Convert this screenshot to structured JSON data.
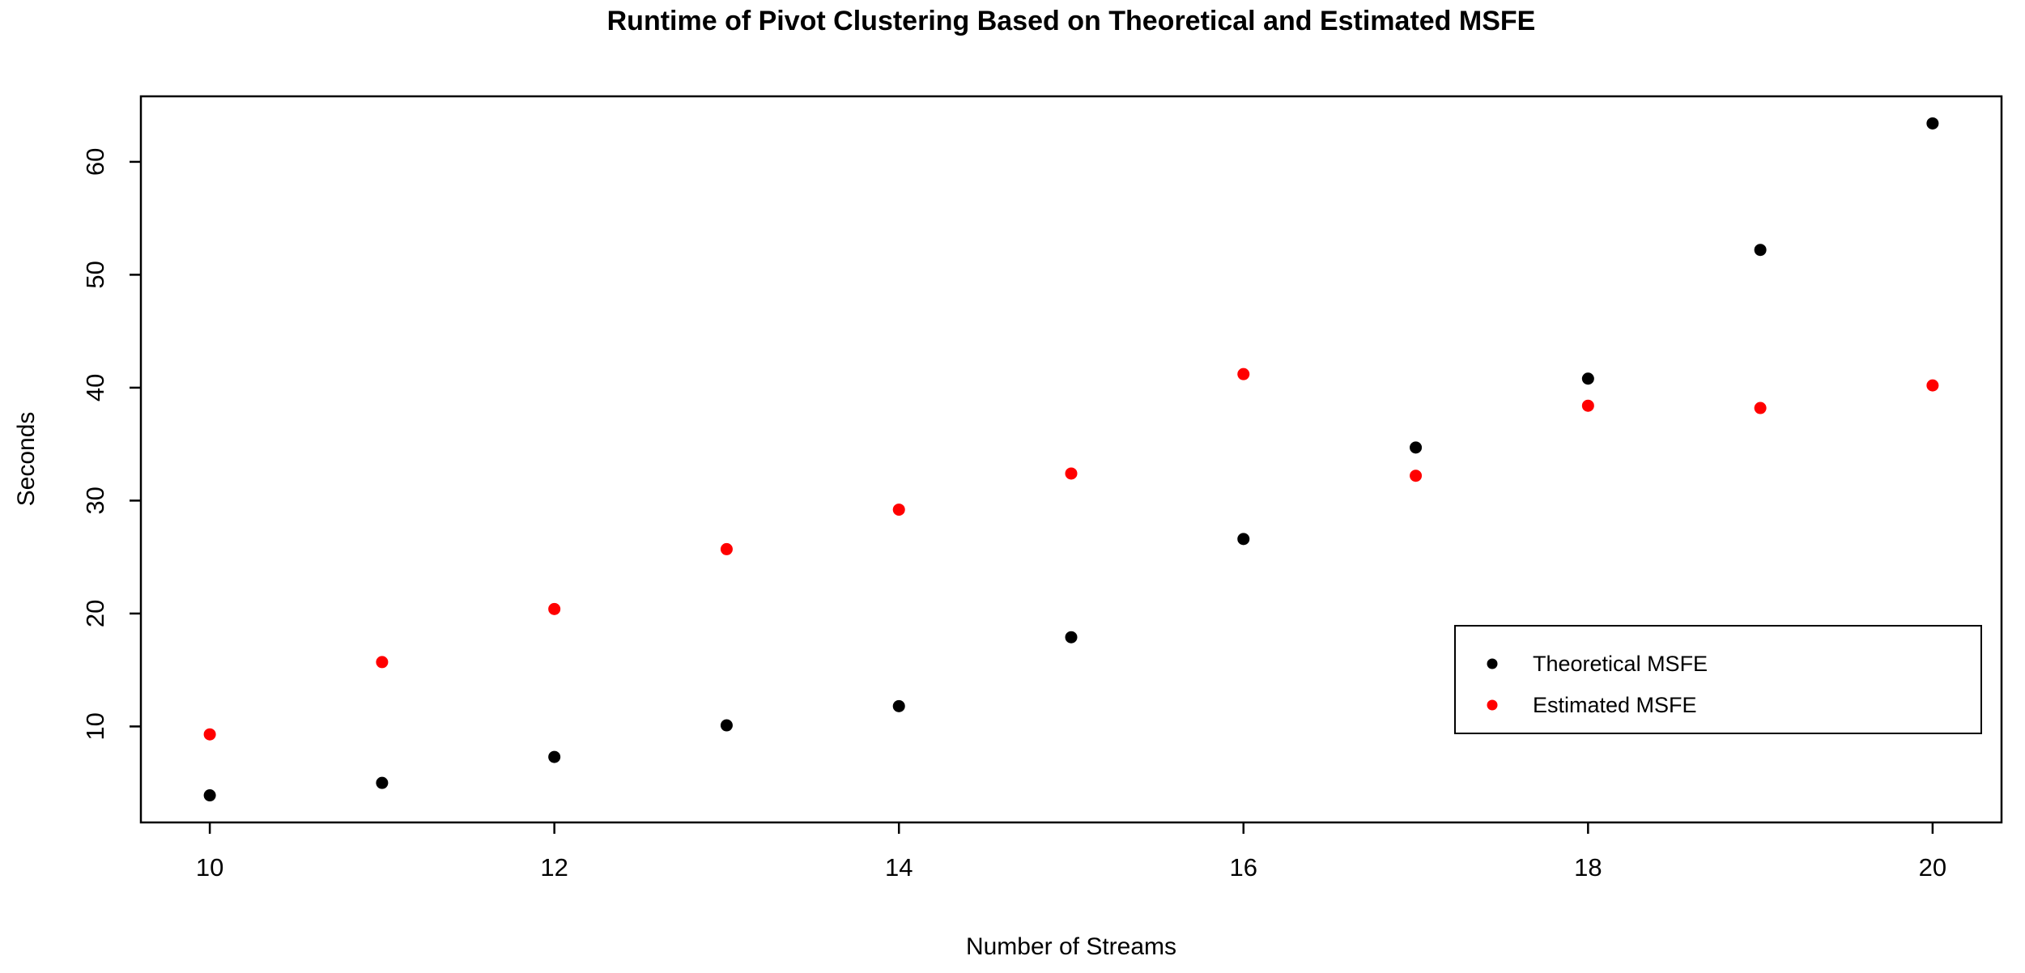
{
  "chart_data": {
    "type": "scatter",
    "title": "Runtime of Pivot Clustering Based on Theoretical and Estimated MSFE",
    "xlabel": "Number of Streams",
    "ylabel": "Seconds",
    "x": [
      10,
      11,
      12,
      13,
      14,
      15,
      16,
      17,
      18,
      19,
      20
    ],
    "series": [
      {
        "name": "Theoretical MSFE",
        "color": "#000000",
        "marker": "filled-circle",
        "values": [
          3.9,
          5.0,
          7.3,
          10.1,
          11.8,
          17.9,
          26.6,
          34.7,
          40.8,
          52.2,
          63.4
        ]
      },
      {
        "name": "Estimated MSFE",
        "color": "#FF0000",
        "marker": "filled-circle",
        "values": [
          9.3,
          15.7,
          20.4,
          25.7,
          29.2,
          32.4,
          41.2,
          32.2,
          38.4,
          38.2,
          40.2
        ]
      }
    ],
    "x_ticks": [
      10,
      12,
      14,
      16,
      18,
      20
    ],
    "y_ticks": [
      10,
      20,
      30,
      40,
      50,
      60
    ],
    "xlim": [
      9.6,
      20.4
    ],
    "ylim": [
      1.5,
      65.8
    ],
    "grid": false,
    "legend_position": "inside-right-lower",
    "background": "#FFFFFF",
    "axis_color": "#000000"
  },
  "legend": {
    "items": [
      {
        "label": "Theoretical MSFE",
        "color": "#000000"
      },
      {
        "label": "Estimated MSFE",
        "color": "#FF0000"
      }
    ]
  }
}
